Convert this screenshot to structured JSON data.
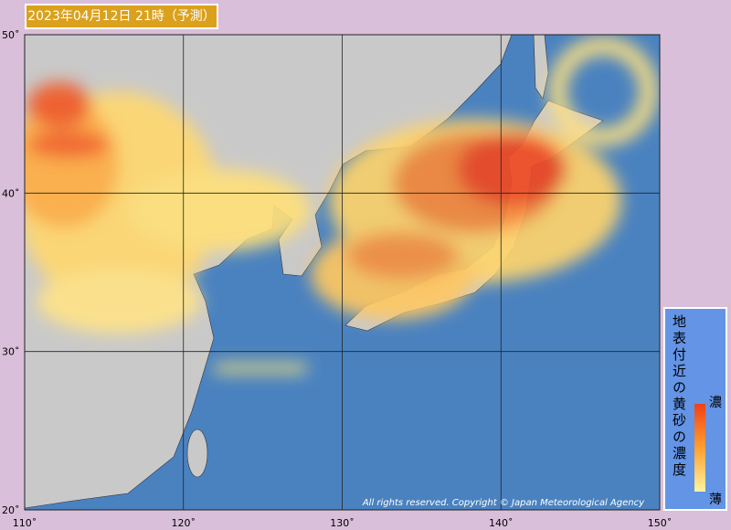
{
  "header": {
    "title": "2023年04月12日 21時（予測）"
  },
  "map": {
    "lat_ticks": [
      {
        "value": 50,
        "label": "50˚"
      },
      {
        "value": 40,
        "label": "40˚"
      },
      {
        "value": 30,
        "label": "30˚"
      },
      {
        "value": 20,
        "label": "20˚"
      }
    ],
    "lon_ticks": [
      {
        "value": 110,
        "label": "110˚"
      },
      {
        "value": 120,
        "label": "120˚"
      },
      {
        "value": 130,
        "label": "130˚"
      },
      {
        "value": 140,
        "label": "140˚"
      },
      {
        "value": 150,
        "label": "150˚"
      }
    ],
    "credit": "All rights reserved. Copyright © Japan Meteorological Agency"
  },
  "legend": {
    "title": "地表付近の黄砂の濃度",
    "high": "濃",
    "low": "薄"
  }
}
